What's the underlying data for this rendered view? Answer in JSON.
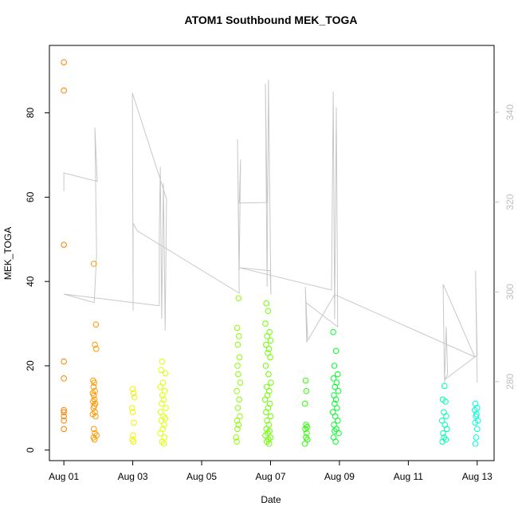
{
  "chart_data": {
    "type": "scatter",
    "title": "ATOM1 Southbound MEK_TOGA",
    "x_label": "Date",
    "y_label": "MEK_TOGA",
    "xlim": [
      0.58,
      13.49
    ],
    "xticks": [
      {
        "value": 1,
        "label": "Aug 01"
      },
      {
        "value": 3,
        "label": "Aug 03"
      },
      {
        "value": 5,
        "label": "Aug 05"
      },
      {
        "value": 7,
        "label": "Aug 07"
      },
      {
        "value": 9,
        "label": "Aug 09"
      },
      {
        "value": 11,
        "label": "Aug 11"
      },
      {
        "value": 13,
        "label": "Aug 13"
      }
    ],
    "ylim": [
      -2.5,
      96
    ],
    "yticks": [
      0,
      20,
      40,
      60,
      80
    ],
    "y2lim": [
      262.4,
      354.9
    ],
    "y2ticks": [
      280,
      300,
      320,
      340
    ],
    "y2_color": "#bebebe",
    "groups": [
      {
        "color": "#ff8000",
        "x": [
          1,
          1,
          1,
          1,
          1,
          1,
          1,
          1,
          1,
          1
        ],
        "y": [
          92,
          85.3,
          48.7,
          21,
          17,
          9.5,
          9,
          8,
          7,
          5
        ]
      },
      {
        "color": "#ff9900",
        "x": [
          1.87,
          1.93,
          1.9,
          1.94,
          1.85,
          1.88,
          1.86,
          1.9,
          1.84,
          1.87,
          1.89,
          1.85,
          1.91,
          1.88,
          1.86,
          1.9,
          1.84,
          1.92,
          1.87,
          1.9,
          1.95,
          1.86,
          1.89
        ],
        "y": [
          44.2,
          29.8,
          25,
          24,
          16.5,
          16,
          15,
          14,
          13.5,
          13,
          12,
          11.5,
          11,
          10.5,
          10,
          9,
          8.5,
          8,
          5,
          4,
          3.5,
          3,
          2.5
        ]
      },
      {
        "color": "#f2f200",
        "x": [
          3.0,
          3.02,
          3.05,
          2.98,
          3.0,
          3.03,
          3.01,
          2.99,
          3.02
        ],
        "y": [
          14.5,
          13.5,
          12.5,
          10,
          9,
          6.5,
          3.5,
          2.5,
          2
        ]
      },
      {
        "color": "#e0ff00",
        "x": [
          3.85,
          3.82,
          3.95,
          3.88,
          3.8,
          3.93,
          3.86,
          3.9,
          3.84,
          3.96,
          3.81,
          3.89,
          3.94,
          3.83,
          3.91,
          3.87,
          3.8,
          3.92,
          3.85,
          3.9
        ],
        "y": [
          21,
          19,
          18.2,
          16,
          15,
          14,
          13,
          12,
          11,
          10,
          9,
          8,
          7.5,
          7,
          6,
          5,
          4,
          3,
          2,
          1.5
        ]
      },
      {
        "color": "#8cff00",
        "x": [
          6.07,
          6.03,
          6.08,
          6.05,
          6.1,
          6.04,
          6.06,
          6.12,
          6.02,
          6.09,
          6.05,
          6.11,
          6.03,
          6.07,
          6.04,
          6.0,
          6.02
        ],
        "y": [
          36,
          29,
          27,
          25,
          22,
          20,
          18,
          16,
          14,
          12,
          10,
          8,
          7,
          6,
          5,
          3,
          2
        ]
      },
      {
        "color": "#6eff00",
        "x": [
          6.88,
          6.93,
          6.85,
          6.97,
          6.9,
          7.0,
          6.87,
          6.95,
          6.92,
          6.99,
          6.86,
          6.94,
          7.01,
          6.89,
          6.96,
          6.91,
          6.84,
          6.98,
          6.93,
          6.87,
          7.0,
          6.9,
          6.95,
          6.88,
          6.97,
          6.92,
          6.85,
          7.0,
          6.94,
          6.89,
          6.96
        ],
        "y": [
          34.8,
          33,
          30,
          28,
          27,
          26,
          25,
          24,
          23,
          22,
          20,
          18,
          16,
          15,
          14,
          13,
          12,
          11,
          10,
          9,
          8,
          7,
          6,
          5,
          4.5,
          4,
          3.5,
          3,
          2.5,
          2,
          1.5
        ]
      },
      {
        "color": "#2bff00",
        "x": [
          8.02,
          8.04,
          8.0,
          8.03,
          8.06,
          8.01,
          8.05,
          8.03,
          8.07,
          8.0
        ],
        "y": [
          16.5,
          14,
          11,
          6,
          5.5,
          5,
          4,
          3,
          2.5,
          1.5
        ]
      },
      {
        "color": "#00ff2b",
        "x": [
          8.82,
          8.9,
          8.85,
          8.95,
          8.83,
          8.92,
          8.87,
          8.97,
          8.84,
          8.9,
          8.86,
          8.93,
          8.81,
          8.88,
          8.95,
          8.84,
          8.91,
          8.86,
          8.98,
          8.83,
          8.89
        ],
        "y": [
          28,
          23.5,
          20,
          18,
          17,
          16,
          15,
          14,
          13,
          12,
          11,
          10,
          9,
          8,
          7,
          6,
          5,
          4.5,
          4,
          3,
          2
        ]
      },
      {
        "color": "#00ffb0",
        "x": [
          12.05,
          12.0,
          12.08,
          12.03,
          12.1,
          11.98,
          12.06,
          12.12,
          12.01,
          12.04,
          12.09,
          11.99
        ],
        "y": [
          15.2,
          12,
          11.5,
          9,
          8,
          7,
          6,
          5,
          4,
          3,
          2.5,
          2
        ]
      },
      {
        "color": "#00ffd5",
        "x": [
          12.95,
          13.0,
          12.93,
          12.98,
          12.96,
          13.02,
          12.94,
          13.0,
          12.97,
          12.95
        ],
        "y": [
          11,
          10,
          9.5,
          8.5,
          8,
          7,
          6.5,
          5,
          3,
          1.5
        ]
      }
    ],
    "line": {
      "color": "#c8c8c8",
      "axis": "y2",
      "x": [
        1.0,
        1.0,
        1.97,
        1.9,
        1.95,
        1.88,
        1.0,
        3.77,
        3.77,
        3.8,
        3.84,
        3.89,
        3.94,
        3.98,
        2.99,
        3.01,
        3.01,
        3.13,
        6.09,
        6.04,
        6.09,
        6.13,
        6.09,
        6.9,
        6.85,
        6.9,
        6.94,
        7.01,
        6.99,
        6.09,
        8.77,
        8.82,
        8.86,
        8.91,
        8.95,
        8.03,
        8.01,
        8.05,
        8.03,
        8.08,
        8.86,
        12.93,
        12.01,
        12.05,
        12.1,
        12.14,
        12.05,
        13.0,
        12.95,
        13.0
      ],
      "values": [
        322.4,
        326.5,
        324.6,
        336.6,
        308.2,
        297.6,
        299.5,
        296.9,
        313.6,
        327.8,
        294.0,
        324.2,
        291.4,
        320.7,
        344.3,
        295.8,
        315.3,
        313.6,
        299.7,
        334.0,
        304.7,
        329.5,
        319.8,
        319.9,
        346.4,
        301.1,
        347.3,
        299.4,
        304.7,
        305.4,
        300.4,
        344.6,
        294.0,
        341.1,
        292.2,
        297.6,
        301.1,
        288.7,
        297.6,
        289.2,
        299.4,
        285.5,
        301.7,
        279.8,
        292.2,
        281.6,
        280.4,
        285.9,
        304.7,
        279.8
      ]
    }
  }
}
